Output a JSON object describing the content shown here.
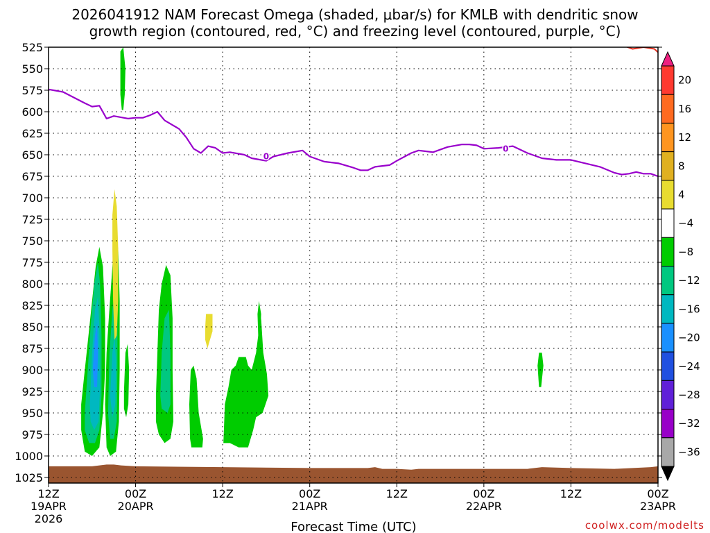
{
  "chart_data": {
    "type": "heatmap",
    "title_line1": "2026041912 NAM Forecast Omega (shaded, μbar/s) for KMLB with dendritic snow",
    "title_line2": "growth region (contoured, red, °C) and freezing level (contoured, purple, °C)",
    "xlabel": "Forecast Time (UTC)",
    "credit": "coolwx.com/modelts",
    "y_axis": {
      "inverted": true,
      "range": [
        525,
        1030
      ],
      "ticks": [
        525,
        550,
        575,
        600,
        625,
        650,
        675,
        700,
        725,
        750,
        775,
        800,
        825,
        850,
        875,
        900,
        925,
        950,
        975,
        1000,
        1025
      ]
    },
    "x_axis": {
      "range_hours": [
        0,
        84
      ],
      "ticks": [
        {
          "h": 0,
          "line1": "12Z",
          "line2": "19APR",
          "line3": "2026"
        },
        {
          "h": 12,
          "line1": "00Z",
          "line2": "20APR",
          "line3": ""
        },
        {
          "h": 24,
          "line1": "12Z",
          "line2": "",
          "line3": ""
        },
        {
          "h": 36,
          "line1": "00Z",
          "line2": "21APR",
          "line3": ""
        },
        {
          "h": 48,
          "line1": "12Z",
          "line2": "",
          "line3": ""
        },
        {
          "h": 60,
          "line1": "00Z",
          "line2": "22APR",
          "line3": ""
        },
        {
          "h": 72,
          "line1": "12Z",
          "line2": "",
          "line3": ""
        },
        {
          "h": 84,
          "line1": "00Z",
          "line2": "23APR",
          "line3": ""
        }
      ]
    },
    "grid": true,
    "colorbar": {
      "labels": [
        "20",
        "16",
        "12",
        "8",
        "4",
        "−4",
        "−8",
        "−12",
        "−16",
        "−20",
        "−24",
        "−28",
        "−32",
        "−36"
      ],
      "colors": [
        "#ee2080",
        "#ff3a30",
        "#ff6a20",
        "#ff9520",
        "#e0b020",
        "#e8dc30",
        "#ffffff",
        "#00cc00",
        "#00c880",
        "#00b8c0",
        "#1a90ff",
        "#2050e0",
        "#6020d8",
        "#9800c8",
        "#a8a8a8",
        "#000000"
      ]
    },
    "freezing_level": {
      "color": "#9900cc",
      "label": "0",
      "label_points": [
        {
          "h": 30.0,
          "p": 652
        },
        {
          "h": 63.0,
          "p": 643
        }
      ],
      "points": [
        [
          0,
          574
        ],
        [
          2,
          577
        ],
        [
          5,
          590
        ],
        [
          6,
          594
        ],
        [
          7,
          593
        ],
        [
          8,
          608
        ],
        [
          9,
          605
        ],
        [
          11,
          608
        ],
        [
          12,
          607
        ],
        [
          13,
          607
        ],
        [
          14,
          604
        ],
        [
          15,
          600
        ],
        [
          16,
          610
        ],
        [
          18,
          620
        ],
        [
          19,
          630
        ],
        [
          20,
          643
        ],
        [
          21,
          648
        ],
        [
          22,
          640
        ],
        [
          23,
          642
        ],
        [
          24,
          648
        ],
        [
          25,
          647
        ],
        [
          27,
          650
        ],
        [
          28,
          654
        ],
        [
          30,
          657
        ],
        [
          31,
          652
        ],
        [
          32,
          650
        ],
        [
          33,
          648
        ],
        [
          35,
          645
        ],
        [
          36,
          652
        ],
        [
          38,
          658
        ],
        [
          40,
          660
        ],
        [
          42,
          665
        ],
        [
          43,
          668
        ],
        [
          44,
          668
        ],
        [
          45,
          664
        ],
        [
          47,
          662
        ],
        [
          48,
          657
        ],
        [
          50,
          648
        ],
        [
          51,
          645
        ],
        [
          52,
          646
        ],
        [
          53,
          647
        ],
        [
          55,
          641
        ],
        [
          57,
          638
        ],
        [
          58,
          638
        ],
        [
          59,
          639
        ],
        [
          60,
          643
        ],
        [
          62,
          642
        ],
        [
          63,
          641
        ],
        [
          64,
          640
        ],
        [
          66,
          648
        ],
        [
          68,
          654
        ],
        [
          70,
          656
        ],
        [
          72,
          656
        ],
        [
          74,
          660
        ],
        [
          76,
          664
        ],
        [
          78,
          671
        ],
        [
          79,
          673
        ],
        [
          80,
          672
        ],
        [
          81,
          670
        ],
        [
          82,
          672
        ],
        [
          83,
          672
        ],
        [
          84,
          675
        ]
      ]
    },
    "dgz": {
      "color": "#e03020",
      "points": [
        [
          79.5,
          524
        ],
        [
          80.5,
          527
        ],
        [
          82,
          525
        ],
        [
          83.5,
          527
        ],
        [
          84,
          531
        ]
      ]
    },
    "terrain": {
      "color": "#9a5530",
      "points": [
        [
          0,
          1012
        ],
        [
          6,
          1012
        ],
        [
          7,
          1011
        ],
        [
          8,
          1010
        ],
        [
          9,
          1010
        ],
        [
          10,
          1011
        ],
        [
          12,
          1012
        ],
        [
          24,
          1013
        ],
        [
          36,
          1014
        ],
        [
          44,
          1014
        ],
        [
          45,
          1013
        ],
        [
          46,
          1015
        ],
        [
          48,
          1015
        ],
        [
          50,
          1016
        ],
        [
          51,
          1015
        ],
        [
          52,
          1015
        ],
        [
          60,
          1015
        ],
        [
          66,
          1015
        ],
        [
          68,
          1013
        ],
        [
          72,
          1014
        ],
        [
          78,
          1015
        ],
        [
          83,
          1013
        ],
        [
          84,
          1012
        ]
      ]
    },
    "omega_regions": [
      {
        "name": "omega-plume-a",
        "level": -4,
        "points": [
          [
            4.5,
            940
          ],
          [
            5,
            900
          ],
          [
            5.5,
            860
          ],
          [
            6,
            820
          ],
          [
            6.5,
            780
          ],
          [
            7,
            757
          ],
          [
            7.5,
            780
          ],
          [
            7.8,
            840
          ],
          [
            7.8,
            900
          ],
          [
            7.5,
            950
          ],
          [
            7,
            990
          ],
          [
            6,
            1000
          ],
          [
            5,
            995
          ],
          [
            4.5,
            970
          ]
        ]
      },
      {
        "name": "omega-plume-a",
        "level": -8,
        "points": [
          [
            5,
            950
          ],
          [
            5.4,
            900
          ],
          [
            5.8,
            850
          ],
          [
            6.3,
            800
          ],
          [
            6.8,
            775
          ],
          [
            7.1,
            800
          ],
          [
            7.3,
            860
          ],
          [
            7.3,
            930
          ],
          [
            7,
            970
          ],
          [
            6.4,
            985
          ],
          [
            5.6,
            985
          ],
          [
            5,
            970
          ]
        ]
      },
      {
        "name": "omega-plume-a",
        "level": -12,
        "points": [
          [
            5.7,
            940
          ],
          [
            6,
            880
          ],
          [
            6.4,
            830
          ],
          [
            6.8,
            815
          ],
          [
            7,
            850
          ],
          [
            7.1,
            920
          ],
          [
            6.9,
            960
          ],
          [
            6.3,
            970
          ],
          [
            5.8,
            960
          ]
        ]
      },
      {
        "name": "omega-plume-a",
        "level": -16,
        "points": [
          [
            6.1,
            900
          ],
          [
            6.4,
            860
          ],
          [
            6.7,
            845
          ],
          [
            6.8,
            880
          ],
          [
            6.7,
            920
          ],
          [
            6.3,
            920
          ]
        ]
      },
      {
        "name": "omega-plume-b",
        "level": -4,
        "points": [
          [
            7.8,
            940
          ],
          [
            8,
            880
          ],
          [
            8.3,
            840
          ],
          [
            8.8,
            780
          ],
          [
            9.2,
            735
          ],
          [
            9.6,
            760
          ],
          [
            9.8,
            820
          ],
          [
            9.8,
            900
          ],
          [
            9.7,
            960
          ],
          [
            9.3,
            995
          ],
          [
            8.5,
            1000
          ],
          [
            8,
            990
          ]
        ]
      },
      {
        "name": "omega-plume-b",
        "level": -8,
        "points": [
          [
            8.2,
            950
          ],
          [
            8.4,
            880
          ],
          [
            8.8,
            830
          ],
          [
            9.2,
            800
          ],
          [
            9.5,
            830
          ],
          [
            9.5,
            900
          ],
          [
            9.4,
            960
          ],
          [
            9,
            980
          ],
          [
            8.5,
            980
          ]
        ]
      },
      {
        "name": "omega-plume-b",
        "level": -12,
        "points": [
          [
            8.5,
            930
          ],
          [
            8.8,
            880
          ],
          [
            9.1,
            860
          ],
          [
            9.3,
            890
          ],
          [
            9.2,
            940
          ],
          [
            8.8,
            955
          ]
        ]
      },
      {
        "name": "omega-wisp-1",
        "level": -4,
        "points": [
          [
            10.4,
            925
          ],
          [
            10.6,
            880
          ],
          [
            10.9,
            870
          ],
          [
            11.1,
            900
          ],
          [
            11,
            940
          ],
          [
            10.7,
            955
          ],
          [
            10.4,
            945
          ]
        ]
      },
      {
        "name": "omega-wisp-2",
        "level": -4,
        "points": [
          [
            9.9,
            530
          ],
          [
            10.3,
            525
          ],
          [
            10.6,
            550
          ],
          [
            10.5,
            580
          ],
          [
            10.3,
            598
          ],
          [
            10.1,
            598
          ],
          [
            9.9,
            580
          ]
        ]
      },
      {
        "name": "omega-plume-c",
        "level": -4,
        "points": [
          [
            14.8,
            930
          ],
          [
            15,
            880
          ],
          [
            15.2,
            830
          ],
          [
            15.6,
            800
          ],
          [
            16.2,
            778
          ],
          [
            16.8,
            790
          ],
          [
            17.1,
            840
          ],
          [
            17.1,
            900
          ],
          [
            17.2,
            960
          ],
          [
            16.8,
            980
          ],
          [
            16,
            985
          ],
          [
            15.2,
            975
          ],
          [
            14.8,
            960
          ]
        ]
      },
      {
        "name": "omega-plume-c",
        "level": -8,
        "points": [
          [
            15.4,
            930
          ],
          [
            15.6,
            880
          ],
          [
            16,
            840
          ],
          [
            16.6,
            830
          ],
          [
            16.8,
            880
          ],
          [
            16.8,
            940
          ],
          [
            16.4,
            950
          ],
          [
            15.6,
            945
          ]
        ]
      },
      {
        "name": "omega-blob-1",
        "level": -4,
        "points": [
          [
            19.5,
            980
          ],
          [
            19.4,
            940
          ],
          [
            19.6,
            900
          ],
          [
            20,
            895
          ],
          [
            20.4,
            910
          ],
          [
            20.7,
            950
          ],
          [
            21.3,
            980
          ],
          [
            21.2,
            990
          ],
          [
            19.7,
            990
          ]
        ]
      },
      {
        "name": "omega-blob-2",
        "level": -4,
        "points": [
          [
            24.1,
            985
          ],
          [
            24.3,
            940
          ],
          [
            24.8,
            920
          ],
          [
            25.2,
            900
          ],
          [
            25.8,
            895
          ],
          [
            26.2,
            885
          ],
          [
            27.2,
            885
          ],
          [
            27.5,
            895
          ],
          [
            28,
            900
          ],
          [
            28.6,
            880
          ],
          [
            28.9,
            860
          ],
          [
            29.3,
            840
          ],
          [
            29.6,
            880
          ],
          [
            30.1,
            905
          ],
          [
            30.3,
            930
          ],
          [
            29.5,
            950
          ],
          [
            28.6,
            955
          ],
          [
            28.2,
            970
          ],
          [
            27.5,
            990
          ],
          [
            26.2,
            990
          ],
          [
            25,
            985
          ]
        ]
      },
      {
        "name": "omega-wisp-3",
        "level": -4,
        "points": [
          [
            28.8,
            835
          ],
          [
            29,
            820
          ],
          [
            29.3,
            835
          ],
          [
            29.2,
            860
          ],
          [
            28.9,
            860
          ]
        ]
      },
      {
        "name": "omega-wisp-4",
        "level": -4,
        "points": [
          [
            67.4,
            895
          ],
          [
            67.6,
            880
          ],
          [
            68,
            880
          ],
          [
            68.2,
            895
          ],
          [
            67.9,
            920
          ],
          [
            67.6,
            920
          ]
        ]
      },
      {
        "name": "omega-pos-1",
        "level": 4,
        "points": [
          [
            8.8,
            720
          ],
          [
            9.1,
            690
          ],
          [
            9.4,
            710
          ],
          [
            9.6,
            760
          ],
          [
            9.6,
            820
          ],
          [
            9.4,
            860
          ],
          [
            9.1,
            865
          ],
          [
            8.9,
            820
          ],
          [
            8.8,
            760
          ]
        ]
      },
      {
        "name": "omega-pos-2",
        "level": 4,
        "points": [
          [
            21.6,
            850
          ],
          [
            21.7,
            835
          ],
          [
            22.6,
            835
          ],
          [
            22.6,
            855
          ],
          [
            21.9,
            875
          ],
          [
            21.6,
            865
          ]
        ]
      }
    ]
  }
}
